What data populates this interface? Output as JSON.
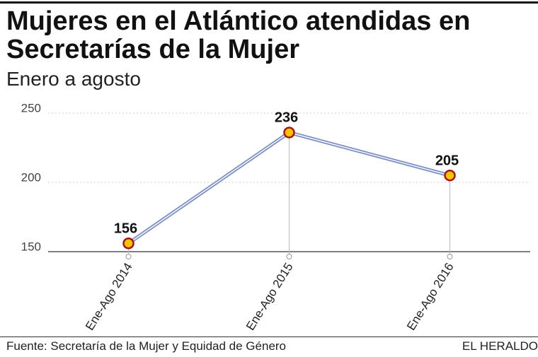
{
  "chart_data": {
    "type": "line",
    "title": "Mujeres en el Atlántico atendidas en Secretarías de la Mujer",
    "subtitle": "Enero a agosto",
    "categories": [
      "Ene-Ago 2014",
      "Ene-Ago 2015",
      "Ene-Ago 2016"
    ],
    "values": [
      156,
      236,
      205
    ],
    "color": "#7b8fc4",
    "marker_fill": "#f7c300",
    "marker_stroke": "#a3141c",
    "ylim": [
      150,
      250
    ],
    "yticks": [
      150,
      200,
      250
    ],
    "grid": true,
    "source": "Fuente: Secretaría de la Mujer y Equidad de Género",
    "brand": "EL HERALDO"
  }
}
